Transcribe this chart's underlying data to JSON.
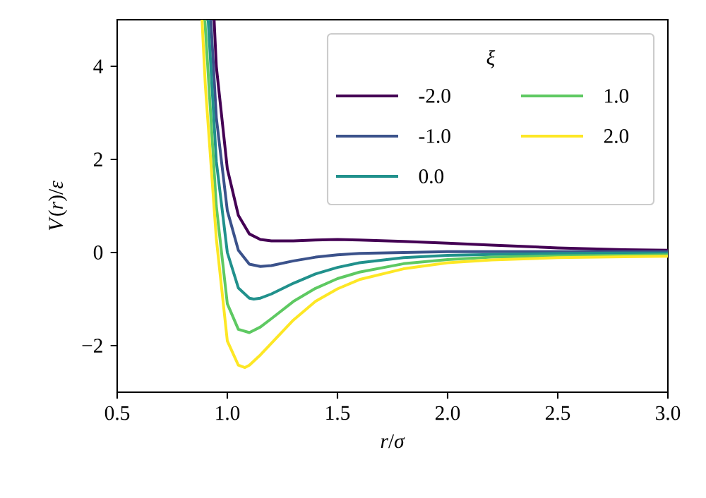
{
  "chart_data": {
    "type": "line",
    "xlabel": "*r*/*σ*",
    "ylabel": "*V*(*r*)/*ε*",
    "legend_title": "*ξ*",
    "xlim": [
      0.5,
      3.0
    ],
    "ylim": [
      -3,
      5
    ],
    "xticks": [
      0.5,
      {
        "value": 1,
        "label": "1.0"
      },
      1.5,
      {
        "value": 2,
        "label": "2.0"
      },
      2.5,
      {
        "value": 3,
        "label": "3.0"
      }
    ],
    "yticks": [
      {
        "value": -2,
        "label": "−2"
      },
      0,
      2,
      4
    ],
    "grid": false,
    "legend": "top right",
    "line_style": "solid",
    "marker": "none",
    "series": [
      {
        "name": "-2.0",
        "color": "#440154",
        "x": [
          0.94,
          0.95,
          1.0,
          1.05,
          1.1,
          1.15,
          1.2,
          1.3,
          1.4,
          1.5,
          1.6,
          1.8,
          2.0,
          2.2,
          2.5,
          2.8,
          3.0
        ],
        "values": [
          5,
          4.0,
          1.8,
          0.8,
          0.4,
          0.28,
          0.25,
          0.25,
          0.27,
          0.28,
          0.27,
          0.24,
          0.2,
          0.16,
          0.1,
          0.06,
          0.05
        ]
      },
      {
        "name": "-1.0",
        "color": "#3b528b",
        "x": [
          0.925,
          0.95,
          1.0,
          1.05,
          1.1,
          1.15,
          1.2,
          1.3,
          1.4,
          1.5,
          1.6,
          1.8,
          2.0,
          2.5,
          3.0
        ],
        "values": [
          5,
          2.9,
          0.9,
          0.05,
          -0.25,
          -0.3,
          -0.28,
          -0.18,
          -0.1,
          -0.05,
          -0.02,
          0.0,
          0.02,
          0.02,
          0.02
        ]
      },
      {
        "name": "0.0",
        "color": "#21918c",
        "x": [
          0.913,
          0.95,
          1.0,
          1.05,
          1.1,
          1.12,
          1.15,
          1.2,
          1.3,
          1.4,
          1.5,
          1.6,
          1.8,
          2.0,
          2.2,
          2.5,
          2.8,
          3.0
        ],
        "values": [
          5,
          1.96,
          0,
          -0.76,
          -0.98,
          -1.0,
          -0.98,
          -0.89,
          -0.66,
          -0.46,
          -0.32,
          -0.22,
          -0.11,
          -0.06,
          -0.04,
          -0.02,
          -0.01,
          -0.01
        ]
      },
      {
        "name": "1.0",
        "color": "#5ec962",
        "x": [
          0.898,
          0.95,
          1.0,
          1.05,
          1.1,
          1.15,
          1.2,
          1.3,
          1.4,
          1.5,
          1.6,
          1.8,
          2.0,
          2.2,
          2.5,
          2.8,
          3.0
        ],
        "values": [
          5,
          1.0,
          -1.1,
          -1.65,
          -1.72,
          -1.6,
          -1.42,
          -1.05,
          -0.77,
          -0.56,
          -0.42,
          -0.24,
          -0.15,
          -0.1,
          -0.07,
          -0.06,
          -0.05
        ]
      },
      {
        "name": "2.0",
        "color": "#fde725",
        "x": [
          0.885,
          0.9,
          0.95,
          1.0,
          1.05,
          1.08,
          1.1,
          1.15,
          1.2,
          1.3,
          1.4,
          1.5,
          1.6,
          1.8,
          2.0,
          2.2,
          2.5,
          2.8,
          3.0
        ],
        "values": [
          5,
          3.6,
          0.3,
          -1.9,
          -2.42,
          -2.47,
          -2.42,
          -2.2,
          -1.95,
          -1.45,
          -1.05,
          -0.78,
          -0.58,
          -0.35,
          -0.22,
          -0.16,
          -0.11,
          -0.09,
          -0.08
        ]
      }
    ]
  }
}
